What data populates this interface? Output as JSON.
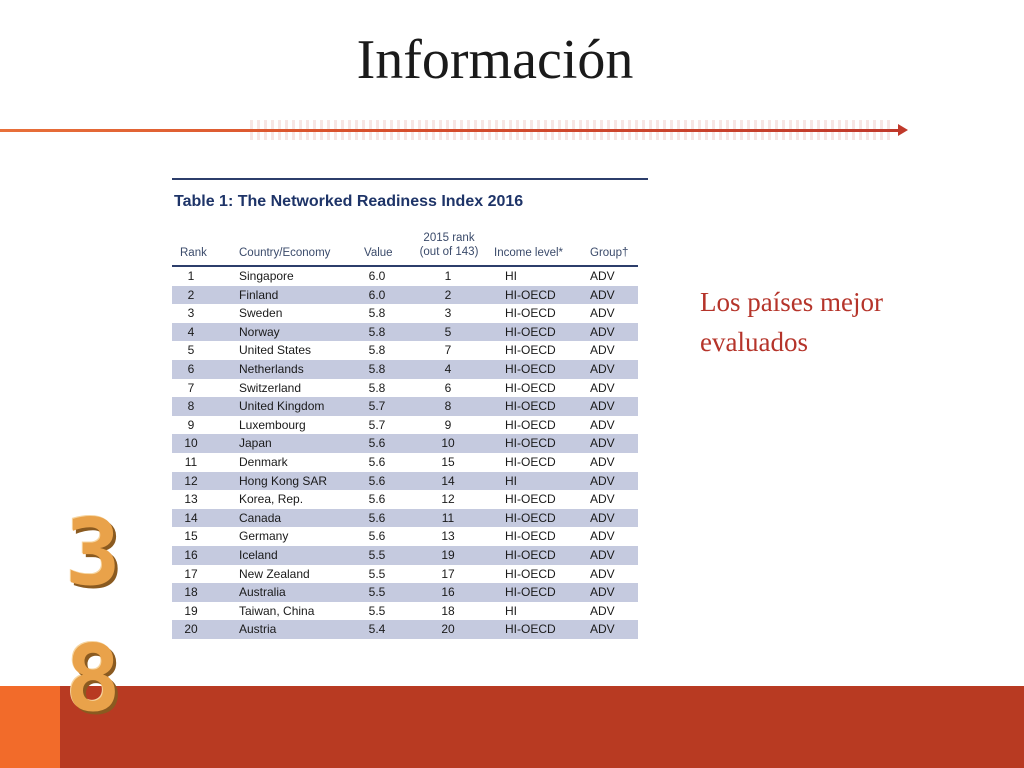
{
  "slide": {
    "title": "Información",
    "side_note": "Los países mejor evaluados",
    "page_number_digits": [
      "3",
      "8"
    ],
    "colors": {
      "accent_red": "#b5342a",
      "footer_band": "#b83a22",
      "footer_accent": "#f26b2a",
      "page_number": "#e9a24a",
      "table_shade": "#c5cadf"
    }
  },
  "table": {
    "caption": "Table 1: The Networked Readiness Index 2016",
    "headers": {
      "rank": "Rank",
      "country": "Country/Economy",
      "value": "Value",
      "prev_rank_line1": "2015 rank",
      "prev_rank_line2": "(out of 143)",
      "income": "Income level*",
      "group": "Group†"
    },
    "rows": [
      {
        "rank": "1",
        "country": "Singapore",
        "value": "6.0",
        "prev": "1",
        "income": "HI",
        "group": "ADV"
      },
      {
        "rank": "2",
        "country": "Finland",
        "value": "6.0",
        "prev": "2",
        "income": "HI-OECD",
        "group": "ADV"
      },
      {
        "rank": "3",
        "country": "Sweden",
        "value": "5.8",
        "prev": "3",
        "income": "HI-OECD",
        "group": "ADV"
      },
      {
        "rank": "4",
        "country": "Norway",
        "value": "5.8",
        "prev": "5",
        "income": "HI-OECD",
        "group": "ADV"
      },
      {
        "rank": "5",
        "country": "United States",
        "value": "5.8",
        "prev": "7",
        "income": "HI-OECD",
        "group": "ADV"
      },
      {
        "rank": "6",
        "country": "Netherlands",
        "value": "5.8",
        "prev": "4",
        "income": "HI-OECD",
        "group": "ADV"
      },
      {
        "rank": "7",
        "country": "Switzerland",
        "value": "5.8",
        "prev": "6",
        "income": "HI-OECD",
        "group": "ADV"
      },
      {
        "rank": "8",
        "country": "United Kingdom",
        "value": "5.7",
        "prev": "8",
        "income": "HI-OECD",
        "group": "ADV"
      },
      {
        "rank": "9",
        "country": "Luxembourg",
        "value": "5.7",
        "prev": "9",
        "income": "HI-OECD",
        "group": "ADV"
      },
      {
        "rank": "10",
        "country": "Japan",
        "value": "5.6",
        "prev": "10",
        "income": "HI-OECD",
        "group": "ADV"
      },
      {
        "rank": "11",
        "country": "Denmark",
        "value": "5.6",
        "prev": "15",
        "income": "HI-OECD",
        "group": "ADV"
      },
      {
        "rank": "12",
        "country": "Hong Kong SAR",
        "value": "5.6",
        "prev": "14",
        "income": "HI",
        "group": "ADV"
      },
      {
        "rank": "13",
        "country": "Korea, Rep.",
        "value": "5.6",
        "prev": "12",
        "income": "HI-OECD",
        "group": "ADV"
      },
      {
        "rank": "14",
        "country": "Canada",
        "value": "5.6",
        "prev": "11",
        "income": "HI-OECD",
        "group": "ADV"
      },
      {
        "rank": "15",
        "country": "Germany",
        "value": "5.6",
        "prev": "13",
        "income": "HI-OECD",
        "group": "ADV"
      },
      {
        "rank": "16",
        "country": "Iceland",
        "value": "5.5",
        "prev": "19",
        "income": "HI-OECD",
        "group": "ADV"
      },
      {
        "rank": "17",
        "country": "New Zealand",
        "value": "5.5",
        "prev": "17",
        "income": "HI-OECD",
        "group": "ADV"
      },
      {
        "rank": "18",
        "country": "Australia",
        "value": "5.5",
        "prev": "16",
        "income": "HI-OECD",
        "group": "ADV"
      },
      {
        "rank": "19",
        "country": "Taiwan, China",
        "value": "5.5",
        "prev": "18",
        "income": "HI",
        "group": "ADV"
      },
      {
        "rank": "20",
        "country": "Austria",
        "value": "5.4",
        "prev": "20",
        "income": "HI-OECD",
        "group": "ADV"
      }
    ]
  }
}
